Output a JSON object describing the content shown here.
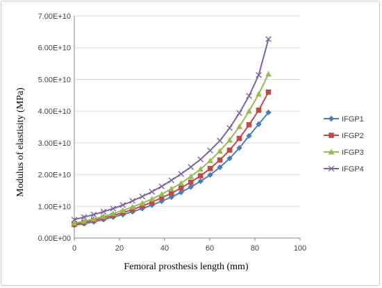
{
  "chart_data": {
    "type": "line",
    "title": "",
    "xlabel": "Femoral prosthesis length (mm)",
    "ylabel": "Modulus of elastisity (MPa)",
    "xlim": [
      0,
      100
    ],
    "ylim": [
      0,
      70000000000
    ],
    "x_ticks": [
      "0",
      "20",
      "40",
      "60",
      "80",
      "100"
    ],
    "y_ticks": [
      "0.00E+00",
      "1.00E+10",
      "2.00E+10",
      "3.00E+10",
      "4.00E+10",
      "5.00E+10",
      "6.00E+10",
      "7.00E+10"
    ],
    "grid": "horizontal",
    "legend_position": "right",
    "x": [
      0,
      4.3,
      8.6,
      12.9,
      17.2,
      21.5,
      25.8,
      30.1,
      34.4,
      38.7,
      43,
      47.3,
      51.6,
      55.9,
      60.2,
      64.5,
      68.8,
      73.1,
      77.4,
      81.7,
      86
    ],
    "series": [
      {
        "name": "IFGP1",
        "color": "#4A7EBB",
        "marker": "diamond",
        "values": [
          4000000000.0,
          4500000000.0,
          5100000000.0,
          5800000000.0,
          6600000000.0,
          7400000000.0,
          8300000000.0,
          9300000000.0,
          10400000000.0,
          11600000000.0,
          12900000000.0,
          14400000000.0,
          16100000000.0,
          17900000000.0,
          19900000000.0,
          22300000000.0,
          25100000000.0,
          28400000000.0,
          32200000000.0,
          35900000000.0,
          39600000000.0
        ]
      },
      {
        "name": "IFGP2",
        "color": "#BE4B48",
        "marker": "square",
        "values": [
          4300000000.0,
          4900000000.0,
          5600000000.0,
          6300000000.0,
          7100000000.0,
          8000000000.0,
          9000000000.0,
          10100000000.0,
          11300000000.0,
          12700000000.0,
          14100000000.0,
          15800000000.0,
          17600000000.0,
          19600000000.0,
          21900000000.0,
          24600000000.0,
          27700000000.0,
          31400000000.0,
          35700000000.0,
          40300000000.0,
          46000000000.0
        ]
      },
      {
        "name": "IFGP3",
        "color": "#98B954",
        "marker": "triangle",
        "values": [
          4700000000.0,
          5300000000.0,
          6000000000.0,
          6800000000.0,
          7700000000.0,
          8700000000.0,
          9800000000.0,
          11000000000.0,
          12300000000.0,
          13800000000.0,
          15500000000.0,
          17300000000.0,
          19400000000.0,
          21700000000.0,
          24400000000.0,
          27400000000.0,
          30900000000.0,
          35100000000.0,
          40000000000.0,
          45400000000.0,
          51700000000.0
        ]
      },
      {
        "name": "IFGP4",
        "color": "#7D60A0",
        "marker": "x",
        "values": [
          5800000000.0,
          6600000000.0,
          7400000000.0,
          8300000000.0,
          9300000000.0,
          10400000000.0,
          11700000000.0,
          13100000000.0,
          14600000000.0,
          16300000000.0,
          18200000000.0,
          20200000000.0,
          22400000000.0,
          24800000000.0,
          27600000000.0,
          30700000000.0,
          34700000000.0,
          39400000000.0,
          44800000000.0,
          51400000000.0,
          62700000000.0
        ]
      }
    ]
  }
}
